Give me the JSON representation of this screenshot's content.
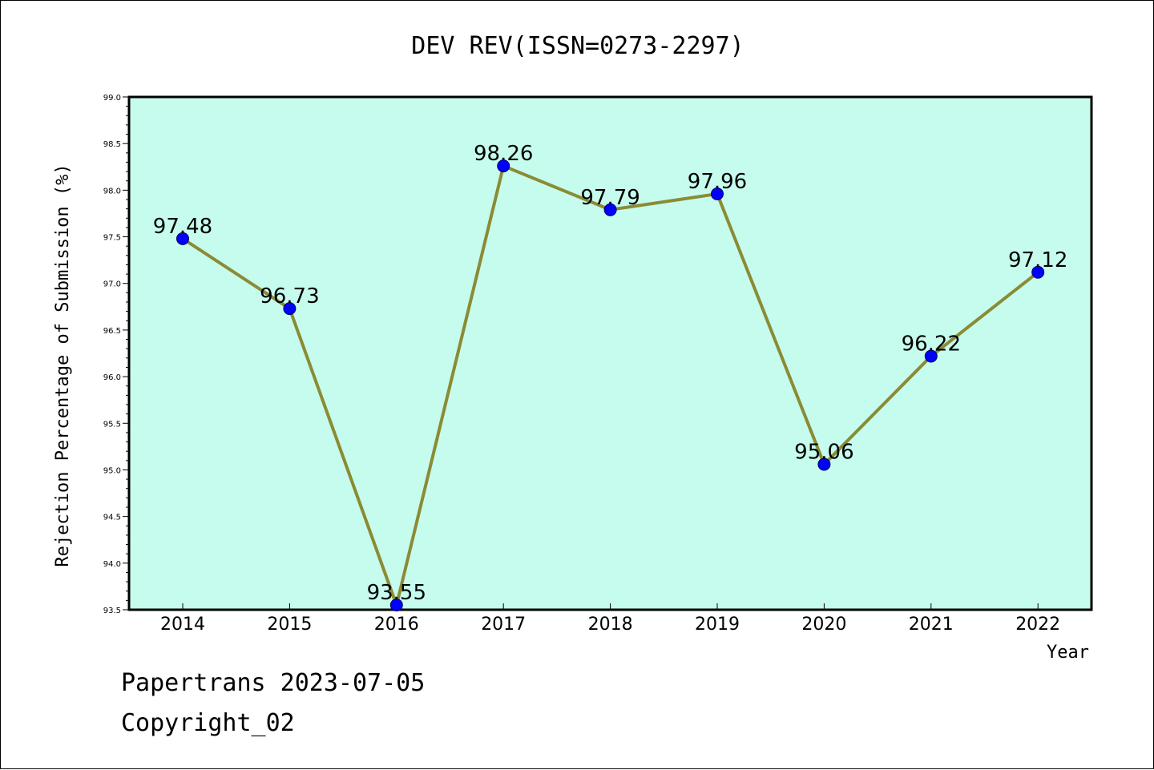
{
  "chart_data": {
    "type": "line",
    "title": "DEV REV(ISSN=0273-2297)",
    "xlabel": "Year",
    "ylabel": "Rejection Percentage of Submission (%)",
    "categories": [
      "2014",
      "2015",
      "2016",
      "2017",
      "2018",
      "2019",
      "2020",
      "2021",
      "2022"
    ],
    "values": [
      97.48,
      96.73,
      93.55,
      98.26,
      97.79,
      97.96,
      95.06,
      96.22,
      97.12
    ],
    "data_labels": [
      "97.48",
      "96.73",
      "93.55",
      "98.26",
      "97.79",
      "97.96",
      "95.06",
      "96.22",
      "97.12"
    ],
    "ylim": [
      93.5,
      99.0
    ],
    "yticks": [
      "93.5",
      "94.0",
      "94.5",
      "95.0",
      "95.5",
      "96.0",
      "96.5",
      "97.0",
      "97.5",
      "98.0",
      "98.5",
      "99.0"
    ],
    "grid": false,
    "colors": {
      "plot_background": "#c6fced",
      "line": "#8b8b35",
      "marker": "#0000ff"
    }
  },
  "footer": {
    "line1": "Papertrans 2023-07-05",
    "line2": "Copyright_02"
  }
}
